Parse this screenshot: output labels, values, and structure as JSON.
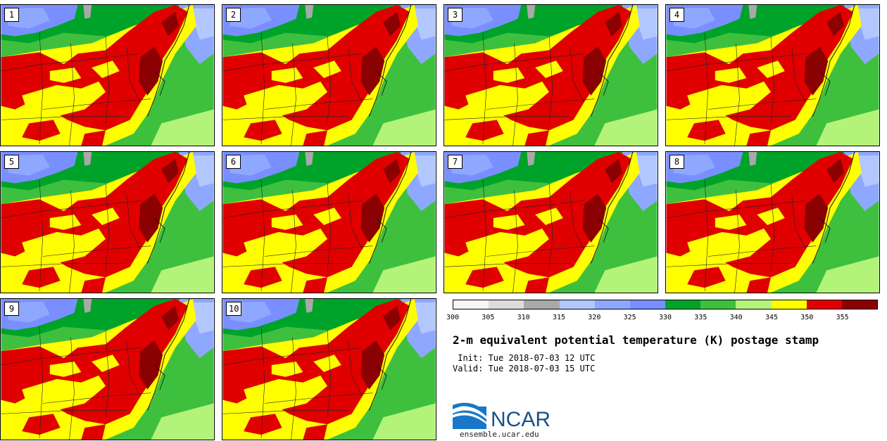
{
  "panels": [
    "1",
    "2",
    "3",
    "4",
    "5",
    "6",
    "7",
    "8",
    "9",
    "10"
  ],
  "colorbar": {
    "colors": [
      "#f5f5f5",
      "#dcdcdc",
      "#a9a9a9",
      "#b3c7ff",
      "#8fa8ff",
      "#7a8fff",
      "#00a32a",
      "#3ec03e",
      "#b3f37a",
      "#ffff00",
      "#e00000",
      "#8b0000"
    ],
    "labels": [
      "300",
      "305",
      "310",
      "315",
      "320",
      "325",
      "330",
      "335",
      "340",
      "345",
      "350",
      "355"
    ]
  },
  "title": "2-m equivalent potential temperature (K) postage stamp",
  "init": " Init: Tue 2018-07-03 12 UTC",
  "valid": "Valid: Tue 2018-07-03 15 UTC",
  "logo": {
    "name": "NCAR",
    "url": "ensemble.ucar.edu"
  }
}
